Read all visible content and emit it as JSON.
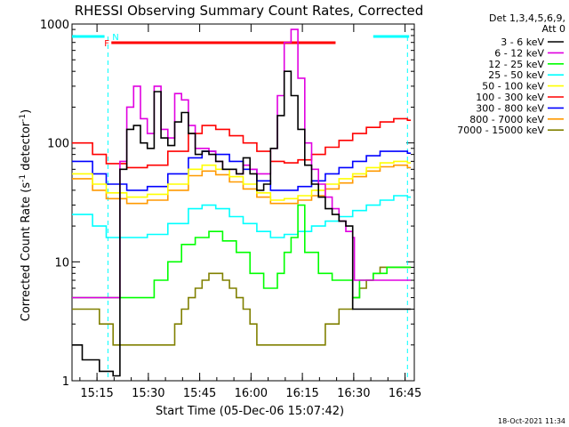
{
  "chart_data": {
    "type": "line",
    "title": "RHESSI Observing Summary Count Rates, Corrected",
    "xlabel": "Start Time (05-Dec-06 15:07:42)",
    "ylabel_main": "Corrected Count Rate (s",
    "ylabel_sup1": "-1",
    "ylabel_mid": " detector",
    "ylabel_sup2": "-1",
    "ylabel_end": ")",
    "y_scale": "log",
    "ylim": [
      1,
      1000
    ],
    "y_ticks": [
      {
        "value": 1,
        "label": "1"
      },
      {
        "value": 10,
        "label": "10"
      },
      {
        "value": 100,
        "label": "100"
      },
      {
        "value": 1000,
        "label": "1000"
      }
    ],
    "xlim_minutes": [
      0,
      100
    ],
    "x_ticks": [
      {
        "minute": 7.3,
        "label": "15:15"
      },
      {
        "minute": 22.3,
        "label": "15:30"
      },
      {
        "minute": 37.3,
        "label": "15:45"
      },
      {
        "minute": 52.3,
        "label": "16:00"
      },
      {
        "minute": 67.3,
        "label": "16:15"
      },
      {
        "minute": 82.3,
        "label": "16:30"
      },
      {
        "minute": 97.3,
        "label": "16:45"
      }
    ],
    "legend_placement": "top-right outside",
    "legend_header": [
      "Det 1,3,4,5,6,9,",
      "Att 0"
    ],
    "series": [
      {
        "name": "3 - 6 keV",
        "color": "#000000",
        "x": [
          0,
          3,
          6,
          8,
          10,
          12,
          14,
          16,
          18,
          20,
          22,
          24,
          26,
          28,
          30,
          32,
          34,
          36,
          38,
          40,
          42,
          44,
          46,
          48,
          50,
          52,
          54,
          56,
          58,
          60,
          62,
          64,
          66,
          68,
          70,
          72,
          74,
          76,
          78,
          80,
          82,
          82.5,
          84,
          86,
          88,
          90,
          92,
          94,
          96,
          98
        ],
        "y": [
          2,
          1.5,
          1.5,
          1.2,
          1.2,
          1.1,
          60,
          130,
          140,
          100,
          90,
          270,
          110,
          95,
          150,
          180,
          120,
          80,
          85,
          80,
          70,
          60,
          60,
          55,
          75,
          55,
          40,
          45,
          90,
          170,
          400,
          250,
          130,
          65,
          45,
          35,
          28,
          25,
          22,
          20,
          4,
          4,
          4,
          4,
          4,
          4,
          4,
          4,
          4,
          4
        ]
      },
      {
        "name": "6 - 12 keV",
        "color": "#e000e0",
        "x": [
          0,
          3,
          6,
          8,
          10,
          12,
          14,
          16,
          18,
          20,
          22,
          24,
          26,
          28,
          30,
          32,
          34,
          36,
          38,
          40,
          42,
          44,
          46,
          48,
          50,
          52,
          54,
          56,
          58,
          60,
          62,
          64,
          66,
          68,
          70,
          72,
          74,
          76,
          78,
          80,
          82,
          82.5,
          84,
          86,
          88,
          90,
          92,
          94,
          96,
          98
        ],
        "y": [
          5,
          5,
          5,
          5,
          5,
          5,
          70,
          200,
          300,
          160,
          120,
          300,
          130,
          110,
          260,
          230,
          140,
          90,
          90,
          85,
          70,
          60,
          60,
          55,
          65,
          60,
          55,
          55,
          90,
          250,
          700,
          900,
          350,
          100,
          60,
          45,
          35,
          28,
          22,
          18,
          16,
          7,
          7,
          7,
          7,
          7,
          7,
          7,
          7,
          7
        ]
      },
      {
        "name": "12 - 25 keV",
        "color": "#00ff00",
        "x": [
          0,
          4,
          8,
          12,
          16,
          20,
          24,
          28,
          32,
          36,
          40,
          44,
          48,
          52,
          56,
          60,
          62,
          64,
          66,
          68,
          72,
          76,
          80,
          82,
          84,
          88,
          92,
          96,
          98
        ],
        "y": [
          5,
          5,
          5,
          5,
          5,
          5,
          7,
          10,
          14,
          16,
          18,
          15,
          12,
          8,
          6,
          8,
          12,
          16,
          30,
          12,
          8,
          7,
          7,
          5,
          7,
          8,
          9,
          9,
          9
        ]
      },
      {
        "name": "25 - 50 keV",
        "color": "#00ffff",
        "x": [
          0,
          6,
          10,
          16,
          22,
          28,
          34,
          38,
          42,
          46,
          50,
          54,
          58,
          62,
          66,
          70,
          74,
          78,
          82,
          86,
          90,
          94,
          98
        ],
        "y": [
          25,
          20,
          16,
          16,
          17,
          21,
          28,
          30,
          28,
          24,
          21,
          18,
          16,
          17,
          18,
          20,
          22,
          24,
          27,
          30,
          33,
          36,
          35
        ]
      },
      {
        "name": "50 - 100 keV",
        "color": "#ffff00",
        "x": [
          0,
          6,
          10,
          16,
          22,
          28,
          34,
          38,
          42,
          46,
          50,
          54,
          58,
          62,
          66,
          70,
          74,
          78,
          82,
          86,
          90,
          94,
          98
        ],
        "y": [
          55,
          45,
          38,
          35,
          37,
          45,
          60,
          65,
          60,
          52,
          45,
          38,
          33,
          34,
          36,
          40,
          45,
          50,
          55,
          62,
          68,
          70,
          68
        ]
      },
      {
        "name": "100 - 300 keV",
        "color": "#ff0000",
        "x": [
          0,
          6,
          10,
          16,
          22,
          28,
          34,
          38,
          42,
          46,
          50,
          54,
          58,
          62,
          66,
          70,
          74,
          78,
          82,
          86,
          90,
          94,
          98
        ],
        "y": [
          100,
          80,
          67,
          62,
          65,
          85,
          120,
          140,
          130,
          115,
          100,
          85,
          70,
          68,
          72,
          80,
          92,
          105,
          120,
          135,
          150,
          160,
          155
        ]
      },
      {
        "name": "300 - 800 keV",
        "color": "#0000ff",
        "x": [
          0,
          6,
          10,
          16,
          22,
          28,
          34,
          38,
          42,
          46,
          50,
          54,
          58,
          62,
          66,
          70,
          74,
          78,
          82,
          86,
          90,
          94,
          98
        ],
        "y": [
          70,
          55,
          45,
          40,
          43,
          55,
          75,
          85,
          80,
          70,
          60,
          48,
          40,
          40,
          43,
          48,
          55,
          62,
          70,
          78,
          85,
          85,
          82
        ]
      },
      {
        "name": "800 - 7000 keV",
        "color": "#ff9900",
        "x": [
          0,
          6,
          10,
          16,
          22,
          28,
          34,
          38,
          42,
          46,
          50,
          54,
          58,
          62,
          66,
          70,
          74,
          78,
          82,
          86,
          90,
          94,
          98
        ],
        "y": [
          50,
          40,
          34,
          31,
          33,
          40,
          53,
          58,
          54,
          47,
          41,
          35,
          31,
          31,
          33,
          36,
          41,
          46,
          52,
          58,
          63,
          65,
          62
        ]
      },
      {
        "name": "7000 - 15000 keV",
        "color": "#808000",
        "x": [
          0,
          3,
          6,
          8,
          10,
          12,
          14,
          16,
          18,
          20,
          22,
          24,
          26,
          28,
          30,
          32,
          34,
          36,
          38,
          40,
          42,
          44,
          46,
          48,
          50,
          52,
          54,
          56,
          58,
          60,
          62,
          64,
          66,
          68,
          70,
          72,
          74,
          76,
          78,
          80,
          82,
          84,
          86,
          88,
          90,
          92,
          94,
          96,
          98
        ],
        "y": [
          4,
          4,
          4,
          3,
          3,
          2,
          2,
          2,
          2,
          2,
          2,
          2,
          2,
          2,
          3,
          4,
          5,
          6,
          7,
          8,
          8,
          7,
          6,
          5,
          4,
          3,
          2,
          2,
          2,
          2,
          2,
          2,
          2,
          2,
          2,
          2,
          3,
          3,
          4,
          4,
          5,
          6,
          7,
          8,
          9,
          9,
          9,
          9,
          9
        ]
      }
    ],
    "attenuator_bars": {
      "color": "#00ffff",
      "segments_minutes": [
        [
          0,
          9.5
        ],
        [
          88,
          98.5
        ]
      ],
      "dashed_lines_minutes": [
        10.5,
        98
      ]
    },
    "flag_bars": [
      {
        "label": "N",
        "color": "#00ffff",
        "start_minute": 11.5
      },
      {
        "label": "F",
        "color": "#ff0000",
        "start_minute": 11.5,
        "end_minute": 77
      }
    ]
  },
  "footer_timestamp": "18-Oct-2021 11:34"
}
